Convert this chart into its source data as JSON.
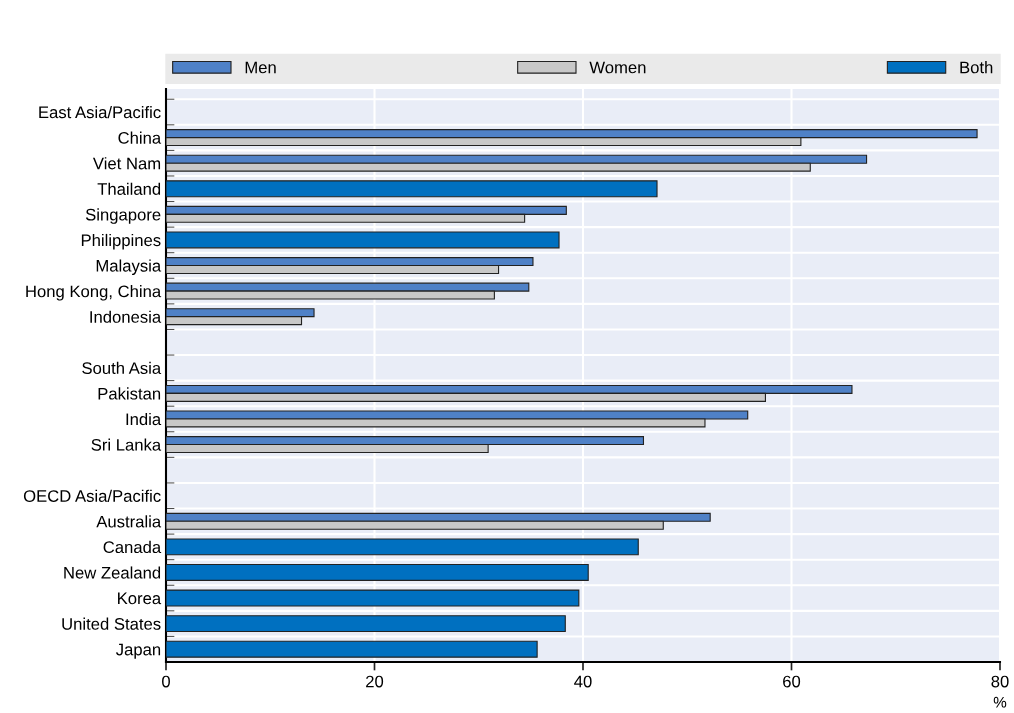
{
  "chart_data": {
    "type": "bar",
    "orientation": "horizontal",
    "xlabel": "%",
    "categories": [
      "East Asia/Pacific",
      "China",
      "Viet Nam",
      "Thailand",
      "Singapore",
      "Philippines",
      "Malaysia",
      "Hong Kong, China",
      "Indonesia",
      null,
      "South Asia",
      "Pakistan",
      "India",
      "Sri Lanka",
      null,
      "OECD Asia/Pacific",
      "Australia",
      "Canada",
      "New Zealand",
      "Korea",
      "United States",
      "Japan"
    ],
    "series": [
      {
        "name": "Men",
        "color": "#4f81c7",
        "values": [
          null,
          77.8,
          67.2,
          null,
          38.4,
          null,
          35.2,
          34.8,
          14.2,
          null,
          null,
          65.8,
          55.8,
          45.8,
          null,
          null,
          52.2,
          null,
          null,
          null,
          null,
          null
        ]
      },
      {
        "name": "Women",
        "color": "#c8c8c8",
        "values": [
          null,
          60.9,
          61.8,
          null,
          34.4,
          null,
          31.9,
          31.5,
          13.0,
          null,
          null,
          57.5,
          51.7,
          30.9,
          null,
          null,
          47.7,
          null,
          null,
          null,
          null,
          null
        ]
      },
      {
        "name": "Both",
        "color": "#0070c0",
        "values": [
          null,
          null,
          null,
          47.1,
          null,
          37.7,
          null,
          null,
          null,
          null,
          null,
          null,
          null,
          null,
          null,
          null,
          null,
          45.3,
          40.5,
          39.6,
          38.3,
          35.6
        ]
      }
    ],
    "xlim": [
      0,
      80
    ],
    "xticks": [
      0,
      20,
      40,
      60,
      80
    ],
    "grid": true,
    "legend": "top"
  }
}
